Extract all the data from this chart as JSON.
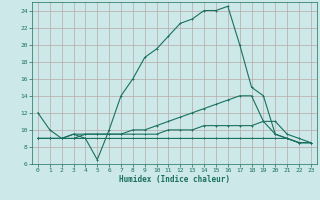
{
  "xlabel": "Humidex (Indice chaleur)",
  "xlim": [
    -0.5,
    23.5
  ],
  "ylim": [
    6,
    25
  ],
  "yticks": [
    6,
    8,
    10,
    12,
    14,
    16,
    18,
    20,
    22,
    24
  ],
  "xticks": [
    0,
    1,
    2,
    3,
    4,
    5,
    6,
    7,
    8,
    9,
    10,
    11,
    12,
    13,
    14,
    15,
    16,
    17,
    18,
    19,
    20,
    21,
    22,
    23
  ],
  "bg_color": "#cce8e8",
  "grid_color": "#b8a8a8",
  "line_color": "#1a7060",
  "line1_x": [
    0,
    1,
    2,
    3,
    4,
    5,
    6,
    7,
    8,
    9,
    10,
    11,
    12,
    13,
    14,
    15,
    16,
    17,
    18,
    19,
    20,
    21,
    22,
    23
  ],
  "line1_y": [
    12,
    10,
    9,
    9.5,
    9,
    6.5,
    10,
    14,
    16,
    18.5,
    19.5,
    21,
    22.5,
    23,
    24,
    24,
    24.5,
    20,
    15,
    14,
    9.5,
    9,
    8.5,
    8.5
  ],
  "line2_x": [
    0,
    1,
    2,
    3,
    4,
    5,
    6,
    7,
    8,
    9,
    10,
    11,
    12,
    13,
    14,
    15,
    16,
    17,
    18,
    19,
    20,
    21,
    22,
    23
  ],
  "line2_y": [
    9,
    9,
    9,
    9.5,
    9.5,
    9.5,
    9.5,
    9.5,
    10,
    10,
    10.5,
    11,
    11.5,
    12,
    12.5,
    13,
    13.5,
    14,
    14,
    11,
    9.5,
    9,
    8.5,
    8.5
  ],
  "line3_x": [
    0,
    1,
    2,
    3,
    4,
    5,
    6,
    7,
    8,
    9,
    10,
    11,
    12,
    13,
    14,
    15,
    16,
    17,
    18,
    19,
    20,
    21,
    22,
    23
  ],
  "line3_y": [
    9,
    9,
    9,
    9,
    9,
    9,
    9,
    9,
    9,
    9,
    9,
    9,
    9,
    9,
    9,
    9,
    9,
    9,
    9,
    9,
    9,
    9,
    8.5,
    8.5
  ],
  "line4_x": [
    0,
    1,
    2,
    3,
    4,
    5,
    6,
    7,
    8,
    9,
    10,
    11,
    12,
    13,
    14,
    15,
    16,
    17,
    18,
    19,
    20,
    21,
    22,
    23
  ],
  "line4_y": [
    9,
    9,
    9,
    9,
    9.5,
    9.5,
    9.5,
    9.5,
    9.5,
    9.5,
    9.5,
    10,
    10,
    10,
    10.5,
    10.5,
    10.5,
    10.5,
    10.5,
    11,
    11,
    9.5,
    9,
    8.5
  ]
}
